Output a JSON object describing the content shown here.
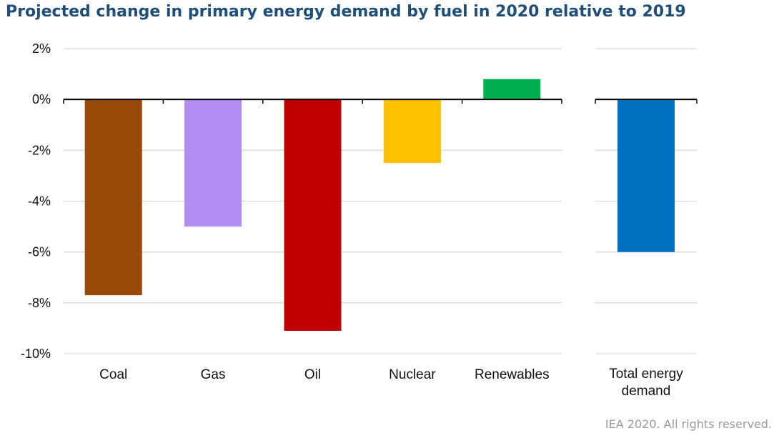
{
  "title": "Projected change in primary energy demand by fuel in 2020 relative to 2019",
  "credit": "IEA 2020. All rights reserved.",
  "chart_data": [
    {
      "type": "bar",
      "title": "Projected change in primary energy demand by fuel in 2020 relative to 2019",
      "categories": [
        "Coal",
        "Gas",
        "Oil",
        "Nuclear",
        "Renewables"
      ],
      "values": [
        -7.7,
        -5.0,
        -9.1,
        -2.5,
        0.8
      ],
      "colors": [
        "#984807",
        "#b18cf2",
        "#c00000",
        "#ffc000",
        "#00b050"
      ],
      "ylim": [
        -10,
        2
      ],
      "yticks": [
        "2%",
        "0%",
        "-2%",
        "-4%",
        "-6%",
        "-8%",
        "-10%"
      ],
      "grid": true,
      "unit": "%"
    },
    {
      "type": "bar",
      "categories": [
        "Total energy demand"
      ],
      "category_lines": [
        [
          "Total energy",
          "demand"
        ]
      ],
      "values": [
        -6.0
      ],
      "colors": [
        "#0070c0"
      ],
      "ylim": [
        -10,
        2
      ],
      "grid": true,
      "unit": "%"
    }
  ]
}
